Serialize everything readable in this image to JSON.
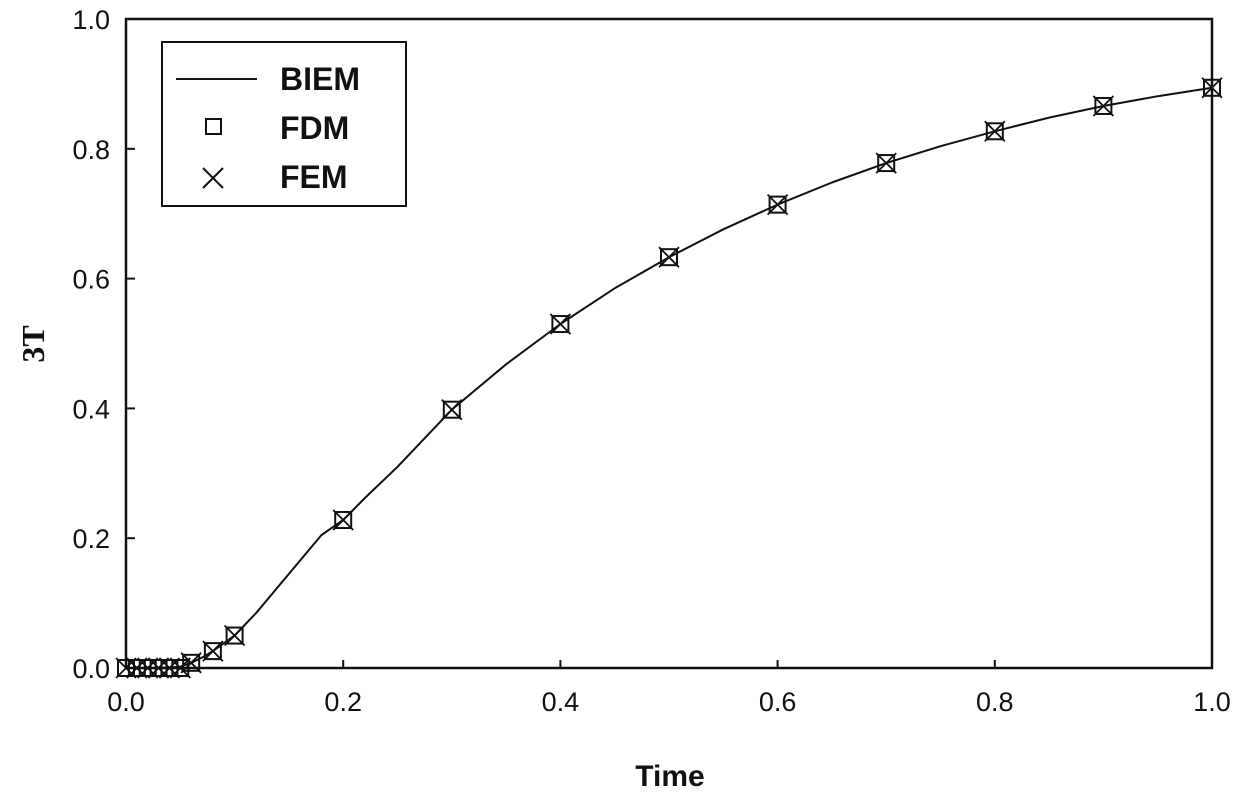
{
  "chart_data": {
    "type": "line",
    "title": "",
    "xlabel": "Time",
    "ylabel": "3T",
    "xlim": [
      0,
      1
    ],
    "ylim": [
      0,
      1
    ],
    "xticks": [
      "0.0",
      "0.2",
      "0.4",
      "0.6",
      "0.8",
      "1.0"
    ],
    "yticks": [
      "0.0",
      "0.2",
      "0.4",
      "0.6",
      "0.8",
      "1.0"
    ],
    "grid": false,
    "legend_position": "top-left",
    "x": [
      0.0,
      0.01,
      0.02,
      0.03,
      0.04,
      0.05,
      0.06,
      0.08,
      0.1,
      0.2,
      0.3,
      0.4,
      0.5,
      0.6,
      0.7,
      0.8,
      0.9,
      1.0
    ],
    "series": [
      {
        "name": "BIEM",
        "style": "line",
        "x": [
          0.0,
          0.03,
          0.05,
          0.06,
          0.07,
          0.08,
          0.09,
          0.1,
          0.12,
          0.14,
          0.16,
          0.18,
          0.2,
          0.22,
          0.25,
          0.3,
          0.35,
          0.4,
          0.45,
          0.5,
          0.55,
          0.6,
          0.65,
          0.7,
          0.75,
          0.8,
          0.85,
          0.9,
          0.95,
          1.0
        ],
        "values": [
          0.0,
          0.0,
          0.002,
          0.008,
          0.016,
          0.026,
          0.038,
          0.05,
          0.085,
          0.125,
          0.165,
          0.205,
          0.228,
          0.262,
          0.31,
          0.398,
          0.468,
          0.53,
          0.585,
          0.633,
          0.676,
          0.714,
          0.748,
          0.778,
          0.804,
          0.827,
          0.848,
          0.866,
          0.881,
          0.894
        ]
      },
      {
        "name": "FDM",
        "style": "square",
        "x": [
          0.0,
          0.01,
          0.02,
          0.03,
          0.04,
          0.05,
          0.06,
          0.08,
          0.1,
          0.2,
          0.3,
          0.4,
          0.5,
          0.6,
          0.7,
          0.8,
          0.9,
          1.0
        ],
        "values": [
          0.0,
          0.0,
          0.0,
          0.0,
          0.0,
          0.0,
          0.008,
          0.026,
          0.05,
          0.228,
          0.398,
          0.53,
          0.633,
          0.714,
          0.778,
          0.827,
          0.866,
          0.894
        ]
      },
      {
        "name": "FEM",
        "style": "cross",
        "x": [
          0.0,
          0.01,
          0.02,
          0.03,
          0.04,
          0.05,
          0.06,
          0.08,
          0.1,
          0.2,
          0.3,
          0.4,
          0.5,
          0.6,
          0.7,
          0.8,
          0.9,
          1.0
        ],
        "values": [
          0.0,
          0.0,
          0.0,
          0.0,
          0.0,
          0.0,
          0.008,
          0.026,
          0.05,
          0.228,
          0.398,
          0.53,
          0.633,
          0.714,
          0.778,
          0.827,
          0.866,
          0.894
        ]
      }
    ]
  },
  "legend": {
    "items": [
      {
        "label": "BIEM"
      },
      {
        "label": "FDM"
      },
      {
        "label": "FEM"
      }
    ]
  }
}
